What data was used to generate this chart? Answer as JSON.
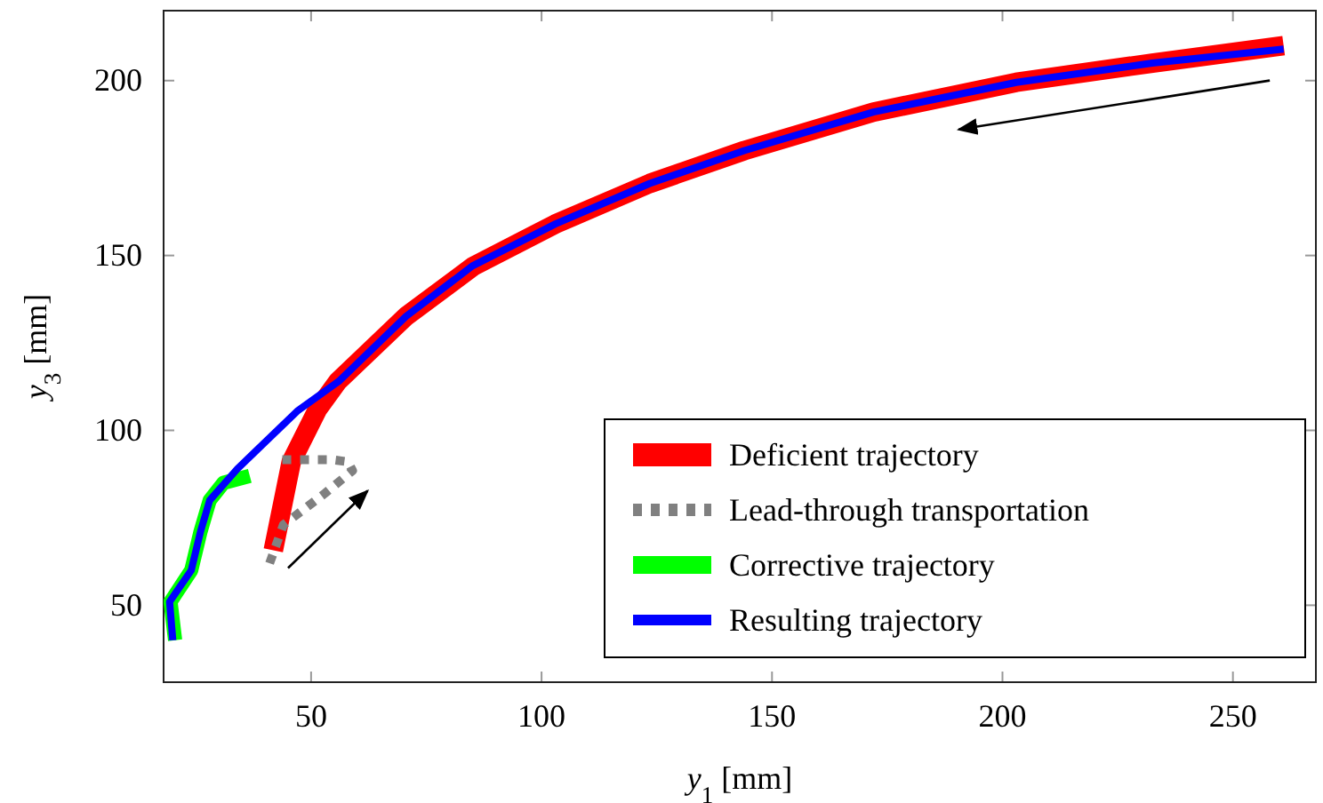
{
  "chart_data": {
    "type": "line",
    "xlabel": "y$_{1}$ [mm]",
    "ylabel": "y$_{3}$ [mm]",
    "xlim": [
      18,
      268
    ],
    "ylim": [
      28,
      220
    ],
    "xticks": [
      50,
      100,
      150,
      200,
      250
    ],
    "yticks": [
      50,
      100,
      150,
      200
    ],
    "grid": false,
    "legend": "bottom right",
    "marker": "none",
    "series": [
      {
        "name": "Deficient trajectory",
        "color": "#ff0000",
        "x": [
          41.8,
          45.7,
          51.4,
          55.8,
          70.6,
          85.3,
          103,
          123.5,
          144,
          172,
          203,
          232.5,
          261
        ],
        "values": [
          65.7,
          91,
          106,
          114,
          132.6,
          147,
          159,
          170.6,
          180,
          191,
          199.5,
          205,
          210
        ]
      },
      {
        "name": "Lead-through transportation",
        "color": "#808080",
        "line_style": "dotted",
        "x": [
          41,
          44,
          53,
          59,
          58,
          54.6,
          42
        ],
        "values": [
          62,
          73,
          82,
          88.5,
          91,
          91.6,
          91.6
        ]
      },
      {
        "name": "Corrective trajectory",
        "color": "#00ff00",
        "x": [
          20.5,
          19.5,
          24,
          26,
          28,
          31,
          36.7
        ],
        "values": [
          40,
          51,
          60,
          71,
          80,
          85,
          87
        ]
      },
      {
        "name": "Resulting trajectory",
        "color": "#0000ff",
        "x": [
          20,
          19.3,
          24,
          26,
          28,
          34,
          47,
          56,
          70.6,
          85,
          103,
          123.5,
          144,
          172,
          203,
          232.5,
          261
        ],
        "values": [
          40,
          51,
          60,
          71,
          80,
          89,
          105.5,
          114,
          132.6,
          147,
          159,
          170.6,
          180,
          191,
          199.5,
          205,
          209
        ]
      }
    ]
  }
}
